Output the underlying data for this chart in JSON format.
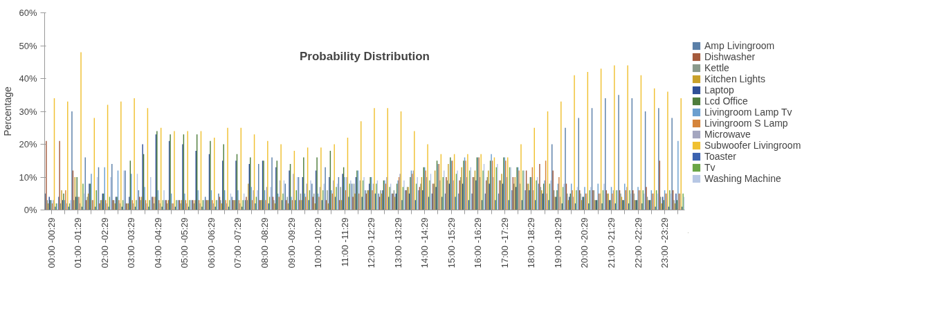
{
  "chart_data": {
    "type": "bar",
    "title": "Probability Distribution",
    "ylabel": "Percentage",
    "categories": [
      "00:00 -00:29",
      null,
      "01:00 -01:29",
      null,
      "02:00 -02:29",
      null,
      "03:00 -03:29",
      null,
      "04:00 -04:29",
      null,
      "05:00 -05:29",
      null,
      "06:00 -06:29",
      null,
      "07:00 -07:29",
      null,
      "08:00 -08:29",
      null,
      "09:00 -09:29",
      null,
      "10:00 -10:29",
      null,
      "11:00 -11:29",
      null,
      "12:00 -12:29",
      null,
      "13:00 -13:29",
      null,
      "14:00 -14:29",
      null,
      "15:00 -15:29",
      null,
      "16:00 -16:29",
      null,
      "17:00 -17:29",
      null,
      "18:00 -18:29",
      null,
      "19:00 -19:29",
      null,
      "20:00 -20:29",
      null,
      "21:00 -21:29",
      null,
      "22:00 -22:29",
      null,
      "23:00 -23:29",
      null
    ],
    "ylim": [
      0,
      60
    ],
    "yticks": [
      {
        "value": 0,
        "label": "0%"
      },
      {
        "value": 10,
        "label": "10%"
      },
      {
        "value": 20,
        "label": "20%"
      },
      {
        "value": 30,
        "label": "30%"
      },
      {
        "value": 40,
        "label": "40%"
      },
      {
        "value": 50,
        "label": "50%"
      },
      {
        "value": 60,
        "label": "60%"
      }
    ],
    "grid": false,
    "legend": "right",
    "series": [
      {
        "name": "Amp Livingroom",
        "color": "#5a7fa8",
        "values": [
          5,
          4,
          30,
          16,
          13,
          14,
          12,
          6,
          4,
          3,
          3,
          3,
          4,
          5,
          4,
          3,
          14,
          16,
          8,
          10,
          8,
          13,
          10,
          8,
          6,
          5,
          5,
          6,
          6,
          5,
          5,
          5,
          5,
          5,
          5,
          6,
          6,
          8,
          20,
          25,
          28,
          31,
          34,
          35,
          34,
          30,
          31,
          28
        ]
      },
      {
        "name": "Dishwasher",
        "color": "#a55a3c",
        "values": [
          21,
          21,
          12,
          3,
          2,
          3,
          2,
          4,
          4,
          3,
          3,
          3,
          3,
          4,
          3,
          4,
          3,
          4,
          3,
          3,
          4,
          3,
          3,
          4,
          5,
          4,
          5,
          6,
          7,
          8,
          10,
          9,
          10,
          9,
          9,
          10,
          12,
          14,
          12,
          8,
          6,
          6,
          6,
          6,
          6,
          7,
          15,
          6
        ]
      },
      {
        "name": "Kettle",
        "color": "#8a9a8c",
        "values": [
          3,
          2,
          3,
          4,
          3,
          3,
          2,
          3,
          2,
          2,
          2,
          2,
          3,
          3,
          3,
          3,
          3,
          3,
          4,
          5,
          5,
          6,
          7,
          8,
          6,
          6,
          6,
          7,
          8,
          8,
          9,
          10,
          10,
          10,
          9,
          8,
          8,
          7,
          6,
          5,
          5,
          6,
          5,
          5,
          5,
          4,
          4,
          3
        ]
      },
      {
        "name": "Kitchen Lights",
        "color": "#c9a12a",
        "values": [
          2,
          6,
          10,
          5,
          3,
          2,
          2,
          4,
          4,
          3,
          3,
          3,
          3,
          2,
          3,
          8,
          3,
          2,
          2,
          3,
          2,
          2,
          3,
          5,
          6,
          5,
          4,
          7,
          10,
          12,
          14,
          13,
          12,
          12,
          11,
          10,
          8,
          6,
          4,
          3,
          3,
          3,
          5,
          4,
          3,
          3,
          2,
          2
        ]
      },
      {
        "name": "Laptop",
        "color": "#2f4f96",
        "values": [
          4,
          3,
          4,
          8,
          5,
          4,
          4,
          20,
          23,
          21,
          20,
          18,
          17,
          15,
          15,
          14,
          15,
          13,
          12,
          10,
          12,
          10,
          11,
          10,
          8,
          6,
          5,
          5,
          6,
          7,
          8,
          8,
          9,
          8,
          8,
          7,
          6,
          5,
          4,
          4,
          4,
          3,
          3,
          3,
          3,
          3,
          4,
          5
        ]
      },
      {
        "name": "Lcd Office",
        "color": "#4e7d3c",
        "values": [
          3,
          5,
          10,
          8,
          5,
          4,
          15,
          17,
          24,
          23,
          23,
          23,
          21,
          20,
          17,
          16,
          15,
          15,
          14,
          16,
          16,
          18,
          13,
          12,
          10,
          9,
          8,
          10,
          13,
          15,
          16,
          15,
          16,
          15,
          16,
          13,
          10,
          8,
          6,
          5,
          4,
          3,
          3,
          3,
          3,
          3,
          3,
          3
        ]
      },
      {
        "name": "Livingroom Lamp Tv",
        "color": "#6b9fcf",
        "values": [
          3,
          3,
          4,
          11,
          13,
          12,
          11,
          7,
          6,
          5,
          5,
          6,
          6,
          6,
          6,
          7,
          6,
          5,
          4,
          5,
          5,
          6,
          10,
          12,
          10,
          9,
          9,
          12,
          13,
          14,
          15,
          16,
          16,
          17,
          16,
          13,
          10,
          9,
          8,
          8,
          7,
          8,
          7,
          8,
          7,
          6,
          6,
          21
        ]
      },
      {
        "name": "Livingroom S Lamp",
        "color": "#d5843a",
        "values": [
          2,
          6,
          4,
          3,
          3,
          3,
          3,
          3,
          3,
          2,
          3,
          3,
          3,
          3,
          3,
          3,
          3,
          4,
          3,
          4,
          4,
          5,
          6,
          5,
          6,
          8,
          10,
          11,
          12,
          14,
          15,
          15,
          16,
          15,
          15,
          12,
          13,
          15,
          10,
          6,
          5,
          5,
          5,
          6,
          6,
          5,
          5,
          5
        ]
      },
      {
        "name": "Microwave",
        "color": "#a4a6bf",
        "values": [
          3,
          2,
          2,
          3,
          2,
          2,
          2,
          2,
          2,
          2,
          2,
          2,
          2,
          2,
          2,
          6,
          7,
          9,
          11,
          8,
          7,
          9,
          10,
          9,
          8,
          10,
          11,
          12,
          10,
          9,
          9,
          10,
          10,
          10,
          10,
          8,
          6,
          5,
          4,
          4,
          5,
          5,
          6,
          7,
          6,
          5,
          5,
          5
        ]
      },
      {
        "name": "Subwoofer Livingroom",
        "color": "#f0c030",
        "values": [
          34,
          33,
          48,
          28,
          32,
          33,
          34,
          31,
          25,
          24,
          24,
          24,
          22,
          25,
          25,
          23,
          21,
          20,
          18,
          19,
          19,
          20,
          22,
          27,
          31,
          31,
          30,
          24,
          20,
          17,
          17,
          17,
          17,
          16,
          16,
          20,
          25,
          30,
          33,
          41,
          42,
          43,
          44,
          44,
          41,
          37,
          36,
          34
        ]
      },
      {
        "name": "Toaster",
        "color": "#3b62b0",
        "values": [
          1,
          1,
          1,
          1,
          1,
          1,
          1,
          1,
          1,
          1,
          1,
          1,
          1,
          1,
          1,
          2,
          2,
          3,
          3,
          3,
          3,
          4,
          4,
          4,
          5,
          4,
          3,
          3,
          4,
          4,
          4,
          3,
          3,
          3,
          3,
          3,
          3,
          3,
          2,
          2,
          2,
          2,
          2,
          2,
          2,
          1,
          1,
          1
        ]
      },
      {
        "name": "Tv",
        "color": "#6aa646",
        "values": [
          2,
          2,
          8,
          6,
          4,
          3,
          3,
          3,
          3,
          3,
          3,
          3,
          3,
          3,
          3,
          4,
          4,
          5,
          6,
          6,
          6,
          7,
          8,
          9,
          8,
          7,
          7,
          8,
          9,
          10,
          11,
          12,
          12,
          13,
          13,
          12,
          9,
          8,
          7,
          6,
          6,
          6,
          6,
          6,
          6,
          6,
          6,
          5
        ]
      },
      {
        "name": "Washing Machine",
        "color": "#b7c7e4",
        "values": [
          2,
          3,
          5,
          10,
          10,
          12,
          11,
          10,
          6,
          3,
          3,
          3,
          3,
          5,
          5,
          6,
          7,
          9,
          10,
          9,
          8,
          8,
          9,
          10,
          9,
          8,
          9,
          10,
          11,
          12,
          12,
          13,
          14,
          14,
          13,
          12,
          10,
          9,
          8,
          7,
          7,
          8,
          6,
          5,
          5,
          5,
          5,
          4
        ]
      }
    ]
  }
}
